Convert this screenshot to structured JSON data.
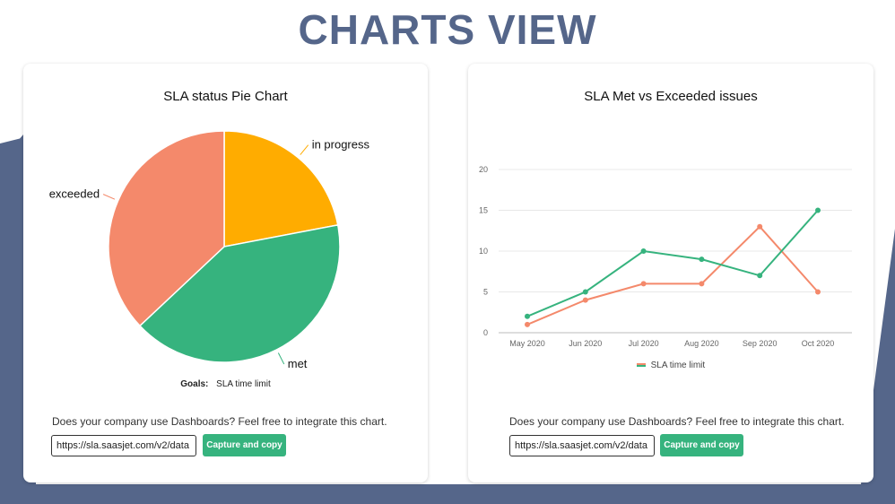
{
  "page_title": "CHARTS VIEW",
  "colors": {
    "title": "#55668a",
    "background_shape": "#55668a",
    "exceeded": "#f4896b",
    "in_progress": "#ffac00",
    "met": "#36b37e",
    "button": "#36b37e"
  },
  "left_card": {
    "title": "SLA status Pie Chart",
    "goals_label": "Goals:",
    "goals_value": "SLA time limit",
    "integrate_text": "Does your company use Dashboards? Feel free to integrate this chart.",
    "url_value": "https://sla.saasjet.com/v2/data",
    "button_label": "Capture and copy"
  },
  "right_card": {
    "title": "SLA Met vs Exceeded issues",
    "legend_label": "SLA time limit",
    "integrate_text": "Does your company use Dashboards? Feel free to integrate this chart.",
    "url_value": "https://sla.saasjet.com/v2/data",
    "button_label": "Capture and copy"
  },
  "chart_data": [
    {
      "type": "pie",
      "title": "SLA status Pie Chart",
      "slices": [
        {
          "label": "in progress",
          "value": 22,
          "color": "#ffac00"
        },
        {
          "label": "met",
          "value": 41,
          "color": "#36b37e"
        },
        {
          "label": "exceeded",
          "value": 37,
          "color": "#f4896b"
        }
      ],
      "legend": "Goals: SLA time limit"
    },
    {
      "type": "line",
      "title": "SLA Met vs Exceeded issues",
      "categories": [
        "May 2020",
        "Jun 2020",
        "Jul 2020",
        "Aug 2020",
        "Sep 2020",
        "Oct 2020"
      ],
      "series": [
        {
          "values": [
            1,
            4,
            6,
            6,
            13,
            5
          ],
          "color": "#f4896b"
        },
        {
          "values": [
            2,
            5,
            10,
            9,
            7,
            15
          ],
          "color": "#36b37e"
        }
      ],
      "ylim": [
        0,
        20
      ],
      "yticks": [
        0,
        5,
        10,
        15,
        20
      ],
      "grid": true,
      "legend": "SLA time limit",
      "legend_position": "bottom"
    }
  ]
}
